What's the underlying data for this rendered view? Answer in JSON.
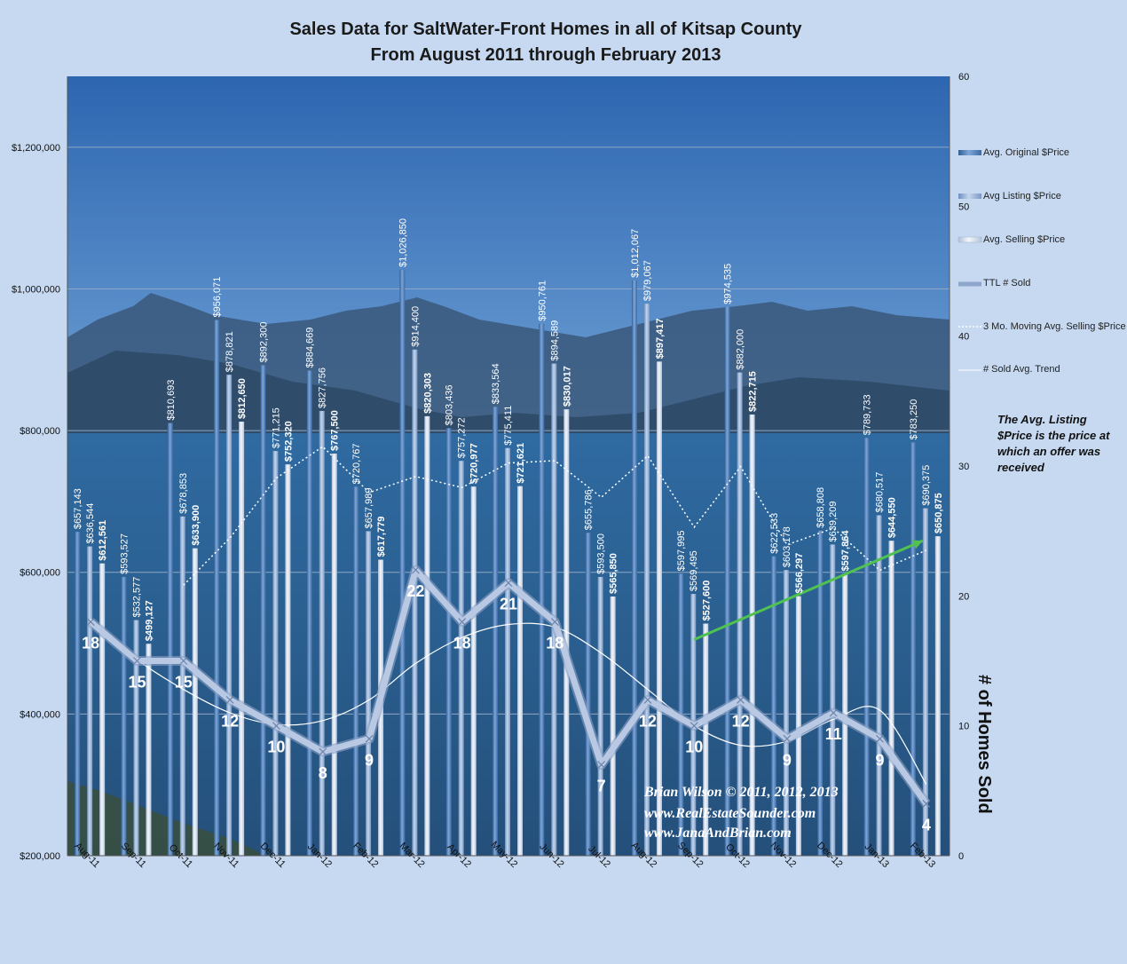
{
  "chart_data": {
    "type": "bar",
    "title": "Sales Data for SaltWater-Front Homes in all of Kitsap County",
    "subtitle": "From August 2011 through February 2013",
    "y2label": "# of Homes Sold",
    "ylim": [
      200000,
      1300000
    ],
    "y2lim": [
      0,
      60
    ],
    "yticks": [
      "$200,000",
      "$400,000",
      "$600,000",
      "$800,000",
      "$1,000,000",
      "$1,200,000"
    ],
    "y2ticks": [
      "0",
      "10",
      "20",
      "30",
      "40",
      "50",
      "60"
    ],
    "categories": [
      "Aug-11",
      "Sep-11",
      "Oct-11",
      "Nov-11",
      "Dec-11",
      "Jan-12",
      "Feb-12",
      "Mar-12",
      "Apr-12",
      "May-12",
      "Jun-12",
      "Jul-12",
      "Aug-12",
      "Sep-12",
      "Oct-12",
      "Nov-12",
      "Dec-12",
      "Jan-13",
      "Feb-13"
    ],
    "series": [
      {
        "name": "Avg. Original $Price",
        "kind": "bar",
        "color": "#4f81bd",
        "values": [
          657143,
          593527,
          810693,
          956071,
          892300,
          884669,
          720767,
          1026850,
          803436,
          833564,
          950761,
          655786,
          1012067,
          597995,
          974535,
          622533,
          658808,
          789733,
          783250
        ],
        "labels": [
          "$657,143",
          "$593,527",
          "$810,693",
          "$956,071",
          "$892,300",
          "$884,669",
          "$720,767",
          "$1,026,850",
          "$803,436",
          "$833,564",
          "$950,761",
          "$655,786",
          "$1,012,067",
          "$597,995",
          "$974,535",
          "$622,533",
          "$658,808",
          "$789,733",
          "$783,250"
        ]
      },
      {
        "name": "Avg Listing $Price",
        "kind": "bar",
        "color": "#95b3d7",
        "values": [
          636544,
          532577,
          678853,
          878821,
          771215,
          827756,
          657989,
          914400,
          757272,
          775411,
          894589,
          593500,
          979067,
          569495,
          882000,
          603178,
          639209,
          680517,
          690375
        ],
        "labels": [
          "$636,544",
          "$532,577",
          "$678,853",
          "$878,821",
          "$771,215",
          "$827,756",
          "$657,989",
          "$914,400",
          "$757,272",
          "$775,411",
          "$894,589",
          "$593,500",
          "$979,067",
          "$569,495",
          "$882,000",
          "$603,178",
          "$639,209",
          "$680,517",
          "$690,375"
        ]
      },
      {
        "name": "Avg. Selling $Price",
        "kind": "bar",
        "color": "#dce6f2",
        "values": [
          612561,
          499127,
          633900,
          812650,
          752320,
          767500,
          617779,
          820303,
          720977,
          721621,
          830017,
          565850,
          897417,
          527600,
          822715,
          566297,
          597864,
          644550,
          650875
        ],
        "labels": [
          "$612,561",
          "$499,127",
          "$633,900",
          "$812,650",
          "$752,320",
          "$767,500",
          "$617,779",
          "$820,303",
          "$720,977",
          "$721,621",
          "$830,017",
          "$565,850",
          "$897,417",
          "$527,600",
          "$822,715",
          "$566,297",
          "$597,864",
          "$644,550",
          "$650,875"
        ]
      },
      {
        "name": "TTL # Sold",
        "kind": "line",
        "axis": "right",
        "color": "#b9c9e4",
        "values": [
          18,
          15,
          15,
          12,
          10,
          8,
          9,
          22,
          18,
          21,
          18,
          7,
          12,
          10,
          12,
          9,
          11,
          9,
          4
        ],
        "labels": [
          "18",
          "15",
          "15",
          "12",
          "10",
          "8",
          "9",
          "22",
          "18",
          "21",
          "18",
          "7",
          "12",
          "10",
          "12",
          "9",
          "11",
          "9",
          "4"
        ]
      },
      {
        "name": "3 Mo. Moving Avg. Selling $Price",
        "kind": "dotted-line",
        "color": "#ffffff",
        "values": [
          null,
          null,
          581863,
          648559,
          732957,
          777490,
          712533,
          735194,
          719686,
          754300,
          757538,
          705829,
          764428,
          663622,
          749244,
          638871,
          662292,
          602904,
          631096
        ]
      },
      {
        "name": "# Sold Avg. Trend",
        "kind": "trend-line",
        "color": "#ffffff",
        "values": [
          18.2,
          15.1,
          12.8,
          11.0,
          10.1,
          10.4,
          12.0,
          14.8,
          16.8,
          17.8,
          17.6,
          15.6,
          12.8,
          10.0,
          8.5,
          8.8,
          10.5,
          11.2,
          5.5
        ]
      }
    ],
    "annotation": "The Avg. Listing $Price is the price at which an offer was received",
    "trend_arrow_color": "#4fc24f",
    "credit": [
      "Brian Wilson  © 2011, 2012, 2013",
      "www.RealEstateSounder.com",
      "www.JanaAndBrian.com"
    ]
  }
}
